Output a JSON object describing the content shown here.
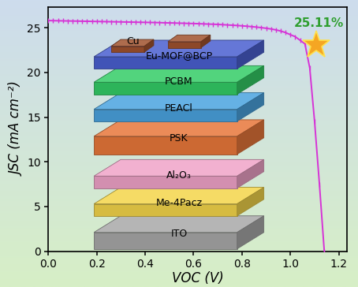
{
  "chart_data": {
    "type": "line",
    "x_label": "VOC (V)",
    "y_label": "JSC (mA cm⁻²)",
    "xlim": [
      0,
      1.235
    ],
    "xticks": [
      {
        "value": 0,
        "label": "0.0"
      },
      0.2,
      0.4,
      0.6,
      0.8,
      {
        "value": 1,
        "label": "1.0"
      },
      1.2
    ],
    "ylim": [
      0,
      27.3
    ],
    "yticks": [
      0,
      5,
      10,
      15,
      20,
      25
    ],
    "x": [
      0.0,
      0.02,
      0.04,
      0.06,
      0.08,
      0.1,
      0.12,
      0.14,
      0.16,
      0.18,
      0.2,
      0.22,
      0.24,
      0.26,
      0.28,
      0.3,
      0.32,
      0.34,
      0.36,
      0.38,
      0.4,
      0.42,
      0.44,
      0.46,
      0.48,
      0.5,
      0.52,
      0.54,
      0.56,
      0.58,
      0.6,
      0.62,
      0.64,
      0.66,
      0.68,
      0.7,
      0.72,
      0.74,
      0.76,
      0.78,
      0.8,
      0.82,
      0.84,
      0.86,
      0.88,
      0.9,
      0.92,
      0.94,
      0.96,
      0.98,
      1.0,
      1.02,
      1.04,
      1.06,
      1.08,
      1.1,
      1.12,
      1.14
    ],
    "values": [
      25.8,
      25.79,
      25.78,
      25.77,
      25.76,
      25.75,
      25.74,
      25.73,
      25.72,
      25.71,
      25.7,
      25.69,
      25.68,
      25.67,
      25.66,
      25.65,
      25.64,
      25.63,
      25.62,
      25.61,
      25.6,
      25.59,
      25.58,
      25.57,
      25.55,
      25.54,
      25.53,
      25.51,
      25.5,
      25.48,
      25.47,
      25.45,
      25.43,
      25.41,
      25.39,
      25.37,
      25.34,
      25.31,
      25.28,
      25.25,
      25.21,
      25.17,
      25.12,
      25.07,
      25.01,
      24.94,
      24.86,
      24.76,
      24.63,
      24.46,
      24.22,
      24.0,
      23.6,
      23.2,
      20.5,
      14.5,
      7.5,
      0.0
    ],
    "color": "#d633d6",
    "marker": "vline",
    "annotations": [
      {
        "text": "25.11%",
        "color": "#2e9e2e"
      }
    ],
    "device_stack": {
      "layers": [
        "Cu",
        "Eu-MOF@BCP",
        "PCBM",
        "PEACl",
        "PSK",
        "Al₂O₃",
        "Me-4Pacz",
        "ITO"
      ],
      "colors": [
        "#a0522d",
        "#4a5fd0",
        "#33cc66",
        "#4aa3df",
        "#e8773a",
        "#f0a3c8",
        "#f3d54a",
        "#a8a8a8"
      ]
    }
  }
}
